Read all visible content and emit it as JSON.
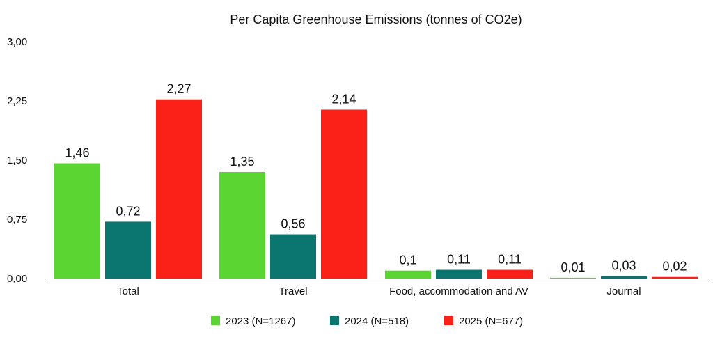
{
  "chart_data": {
    "type": "bar",
    "title": "Per Capita Greenhouse Emissions (tonnes of CO2e)",
    "xlabel": "",
    "ylabel": "",
    "ylim": [
      0,
      3
    ],
    "yticks": [
      "0,00",
      "0,75",
      "1,50",
      "2,25",
      "3,00"
    ],
    "categories": [
      "Total",
      "Travel",
      "Food, accommodation and AV",
      "Journal"
    ],
    "series": [
      {
        "name": "2023 (N=1267)",
        "color": "#5ad531",
        "values": [
          1.46,
          1.35,
          0.1,
          0.01
        ],
        "labels": [
          "1,46",
          "1,35",
          "0,1",
          "0,01"
        ]
      },
      {
        "name": "2024 (N=518)",
        "color": "#0b756f",
        "values": [
          0.72,
          0.56,
          0.11,
          0.03
        ],
        "labels": [
          "0,72",
          "0,56",
          "0,11",
          "0,03"
        ]
      },
      {
        "name": "2025 (N=677)",
        "color": "#fc2118",
        "values": [
          2.27,
          2.14,
          0.11,
          0.02
        ],
        "labels": [
          "2,27",
          "2,14",
          "0,11",
          "0,02"
        ]
      }
    ],
    "grid": false,
    "legend_position": "bottom"
  }
}
